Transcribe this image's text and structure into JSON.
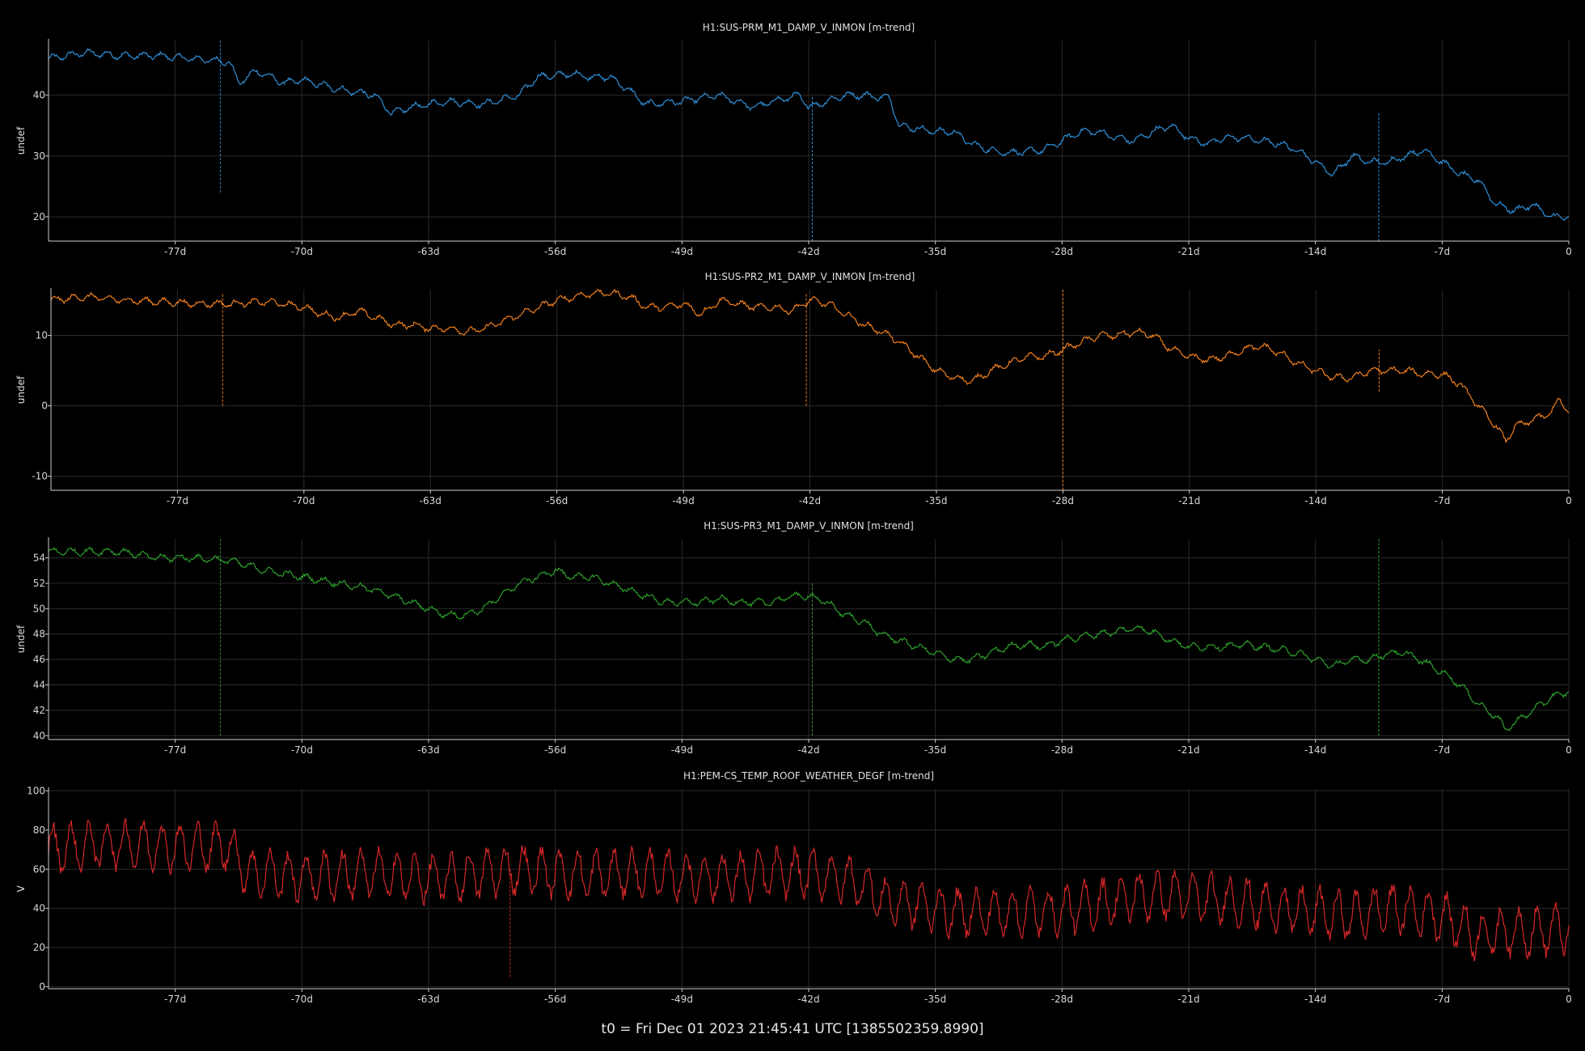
{
  "footer": "t0 = Fri Dec 01 2023 21:45:41 UTC [1385502359.8990]",
  "chart_data": [
    {
      "type": "line",
      "title": "H1:SUS-PRM_M1_DAMP_V_INMON [m-trend]",
      "ylabel": "undef",
      "color": "#2f8fd8",
      "xlim": [
        -84,
        0
      ],
      "x_ticks": [
        -77,
        -70,
        -63,
        -56,
        -49,
        -42,
        -35,
        -28,
        -21,
        -14,
        -7,
        0
      ],
      "x_tick_labels": [
        "-77d",
        "-70d",
        "-63d",
        "-56d",
        "-49d",
        "-42d",
        "-35d",
        "-28d",
        "-21d",
        "-14d",
        "-7d",
        "0"
      ],
      "ylim": [
        16,
        49
      ],
      "y_ticks": [
        20,
        30,
        40
      ],
      "grid": true,
      "series": [
        {
          "x": [
            -84,
            -82,
            -80,
            -78,
            -76,
            -74,
            -73.5,
            -72.5,
            -71,
            -70,
            -68,
            -66,
            -65,
            -64,
            -62,
            -60,
            -58,
            -57,
            -55,
            -54,
            -53,
            -52,
            -51,
            -49,
            -47,
            -45,
            -44,
            -42.5,
            -42,
            -41,
            -40,
            -39,
            -37.5,
            -37,
            -35,
            -34,
            -33,
            -32,
            -31,
            -29,
            -28,
            -27,
            -26,
            -25,
            -24,
            -23,
            -22,
            -21,
            -20,
            -19,
            -18,
            -17,
            -16,
            -15,
            -14,
            -13,
            -12,
            -11,
            -10,
            -9,
            -8,
            -7,
            -6,
            -5,
            -4,
            -3,
            -2,
            -1,
            0
          ],
          "y": [
            46,
            47,
            46.5,
            46.5,
            46,
            45.5,
            42,
            44,
            42,
            42.5,
            41,
            40,
            37,
            38,
            39,
            38.5,
            40,
            43,
            43.5,
            43,
            43,
            41,
            38.5,
            39,
            40,
            38,
            39,
            40,
            38,
            39,
            40,
            40,
            39.5,
            35,
            34,
            34,
            32,
            31,
            30.5,
            31,
            32.5,
            34,
            34,
            33,
            32.5,
            34,
            35,
            33,
            32,
            33,
            33,
            32.5,
            32,
            31,
            29,
            27,
            30,
            29,
            29,
            30,
            31,
            29,
            27,
            26,
            22,
            21,
            22,
            20,
            20
          ]
        }
      ],
      "spikes": [
        {
          "x": -74.5,
          "y0": 24,
          "y1": 49
        },
        {
          "x": -41.8,
          "y0": 16,
          "y1": 40
        },
        {
          "x": -10.5,
          "y0": 16,
          "y1": 37
        }
      ]
    },
    {
      "type": "line",
      "title": "H1:SUS-PR2_M1_DAMP_V_INMON [m-trend]",
      "ylabel": "undef",
      "color": "#f07f1e",
      "xlim": [
        -84,
        0
      ],
      "x_ticks": [
        -77,
        -70,
        -63,
        -56,
        -49,
        -42,
        -35,
        -28,
        -21,
        -14,
        -7,
        0
      ],
      "x_tick_labels": [
        "-77d",
        "-70d",
        "-63d",
        "-56d",
        "-49d",
        "-42d",
        "-35d",
        "-28d",
        "-21d",
        "-14d",
        "-7d",
        "0"
      ],
      "ylim": [
        -12,
        16.5
      ],
      "y_ticks": [
        -10,
        0,
        10
      ],
      "grid": true,
      "series": [
        {
          "x": [
            -84,
            -82,
            -80,
            -78,
            -76,
            -74,
            -72,
            -70,
            -69,
            -68,
            -67,
            -66,
            -65,
            -64,
            -63,
            -62,
            -61,
            -60,
            -59,
            -58,
            -57,
            -56,
            -55,
            -54,
            -53,
            -52,
            -51,
            -50,
            -49,
            -48,
            -47,
            -46,
            -45,
            -44,
            -43,
            -42,
            -41,
            -40,
            -39,
            -38,
            -37,
            -36,
            -35,
            -34,
            -33,
            -32,
            -31,
            -30,
            -29,
            -28,
            -27,
            -26,
            -25,
            -24,
            -23,
            -22,
            -21,
            -20,
            -19,
            -18,
            -17,
            -16,
            -15,
            -14,
            -13,
            -12,
            -11,
            -10,
            -9,
            -8,
            -7,
            -6,
            -5,
            -4,
            -3.5,
            -3,
            -2,
            -1,
            -0.5,
            0
          ],
          "y": [
            15,
            15.5,
            15,
            14.8,
            14.5,
            14.5,
            14.8,
            14,
            13,
            12.5,
            13.5,
            12.5,
            11.5,
            11.5,
            11,
            11,
            10.5,
            11,
            12,
            13,
            14,
            15,
            15.5,
            16,
            16,
            15.5,
            14,
            14,
            14.5,
            13,
            15,
            14.5,
            14,
            14,
            13.5,
            15,
            14.5,
            13,
            11.5,
            10.5,
            9,
            7,
            5,
            4,
            3.5,
            5,
            6,
            7,
            7,
            8,
            9,
            10,
            10,
            10.5,
            10,
            8,
            7,
            6.5,
            7,
            8,
            8.5,
            7.5,
            6,
            5,
            4,
            4,
            5,
            5,
            5,
            4.5,
            4.5,
            3,
            0,
            -3,
            -5,
            -3,
            -2,
            -1,
            1,
            -1
          ]
        }
      ],
      "spikes": [
        {
          "x": -74.5,
          "y0": 0,
          "y1": 16
        },
        {
          "x": -42.2,
          "y0": 0,
          "y1": 16
        },
        {
          "x": -28,
          "y0": -12,
          "y1": 16.5
        },
        {
          "x": -10.5,
          "y0": 2,
          "y1": 8
        }
      ]
    },
    {
      "type": "line",
      "title": "H1:SUS-PR3_M1_DAMP_V_INMON [m-trend]",
      "ylabel": "undef",
      "color": "#2da02b",
      "xlim": [
        -84,
        0
      ],
      "x_ticks": [
        -77,
        -70,
        -63,
        -56,
        -49,
        -42,
        -35,
        -28,
        -21,
        -14,
        -7,
        0
      ],
      "x_tick_labels": [
        "-77d",
        "-70d",
        "-63d",
        "-56d",
        "-49d",
        "-42d",
        "-35d",
        "-28d",
        "-21d",
        "-14d",
        "-7d",
        "0"
      ],
      "ylim": [
        39.7,
        55.5
      ],
      "y_ticks": [
        40,
        42,
        44,
        46,
        48,
        50,
        52,
        54
      ],
      "grid": true,
      "series": [
        {
          "x": [
            -84,
            -82,
            -80,
            -78,
            -76,
            -74,
            -72,
            -70,
            -68,
            -66,
            -64,
            -63,
            -62,
            -61,
            -60,
            -59,
            -58,
            -57,
            -56,
            -55,
            -54,
            -53,
            -52,
            -51,
            -50,
            -49,
            -48,
            -47,
            -46,
            -45,
            -44,
            -43,
            -42,
            -41,
            -40,
            -39,
            -38,
            -37,
            -36,
            -35,
            -34,
            -33,
            -32,
            -31,
            -30,
            -29,
            -28,
            -27,
            -26,
            -25,
            -24,
            -23,
            -22,
            -21,
            -20,
            -19,
            -18,
            -17,
            -16,
            -15,
            -14,
            -13,
            -12,
            -11,
            -10,
            -9,
            -8,
            -7,
            -6,
            -5,
            -4,
            -3.5,
            -3,
            -2,
            -1,
            0
          ],
          "y": [
            54.5,
            54.5,
            54.5,
            54,
            54,
            53.8,
            53,
            52.5,
            52,
            51.5,
            50.5,
            50,
            49.5,
            49.5,
            50,
            51,
            52,
            52.5,
            53,
            52.5,
            52.5,
            52,
            51.5,
            51,
            50.5,
            50.5,
            50.5,
            50.8,
            50.5,
            50.5,
            50.5,
            51,
            51,
            50.5,
            49.5,
            49,
            48,
            47.5,
            47,
            46.5,
            46,
            46,
            46.5,
            47,
            47.2,
            47,
            47.5,
            47.8,
            48,
            48.2,
            48.5,
            48.2,
            47.5,
            47,
            47,
            47,
            47.2,
            47,
            46.8,
            46.5,
            46,
            45.5,
            46,
            46,
            46.5,
            46.5,
            45.8,
            45,
            44,
            42.5,
            41.5,
            40.5,
            41,
            42,
            43,
            43.5
          ]
        }
      ],
      "spikes": [
        {
          "x": -74.5,
          "y0": 40,
          "y1": 55.5
        },
        {
          "x": -41.8,
          "y0": 40,
          "y1": 52
        },
        {
          "x": -10.5,
          "y0": 40,
          "y1": 55.5
        }
      ]
    },
    {
      "type": "line",
      "title": "H1:PEM-CS_TEMP_ROOF_WEATHER_DEGF [m-trend]",
      "ylabel": "V",
      "color": "#d62728",
      "xlim": [
        -84,
        0
      ],
      "x_ticks": [
        -77,
        -70,
        -63,
        -56,
        -49,
        -42,
        -35,
        -28,
        -21,
        -14,
        -7,
        0
      ],
      "x_tick_labels": [
        "-77d",
        "-70d",
        "-63d",
        "-56d",
        "-49d",
        "-42d",
        "-35d",
        "-28d",
        "-21d",
        "-14d",
        "-7d",
        "0"
      ],
      "ylim": [
        -1,
        101
      ],
      "y_ticks": [
        0,
        20,
        40,
        60,
        80,
        100
      ],
      "grid": true,
      "series": [
        {
          "x": [
            -84,
            -82,
            -80,
            -78,
            -76,
            -74,
            -73,
            -72,
            -70,
            -68,
            -66,
            -64,
            -62,
            -60,
            -58,
            -56,
            -54,
            -52,
            -50,
            -48,
            -46,
            -44,
            -42,
            -40,
            -38.5,
            -38,
            -36,
            -34,
            -32,
            -30,
            -28,
            -26,
            -24,
            -22,
            -20,
            -18,
            -16,
            -14,
            -12,
            -10,
            -8,
            -7,
            -6,
            -5,
            -4,
            -3,
            -2,
            -1,
            0
          ],
          "y": [
            70,
            72,
            73,
            72,
            71,
            72,
            58,
            58,
            56,
            57,
            58,
            56,
            55,
            58,
            60,
            58,
            57,
            58,
            57,
            56,
            56,
            58,
            58,
            55,
            50,
            44,
            42,
            38,
            38,
            38,
            39,
            42,
            46,
            47,
            45,
            43,
            40,
            38,
            36,
            40,
            38,
            36,
            31,
            26,
            28,
            28,
            28,
            29,
            30
          ]
        }
      ],
      "spikes": [
        {
          "x": -58.5,
          "y0": 5,
          "y1": 60
        }
      ]
    }
  ]
}
